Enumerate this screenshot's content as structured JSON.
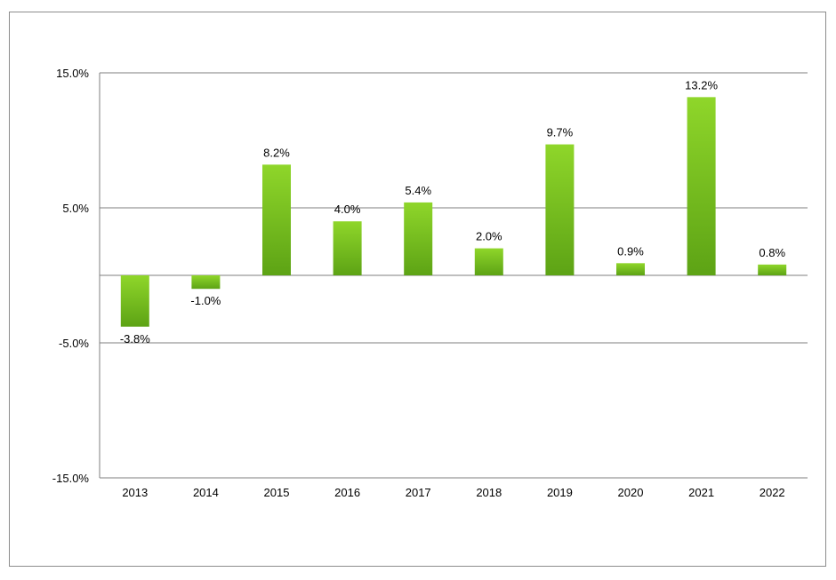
{
  "chart_data": {
    "type": "bar",
    "title": "",
    "xlabel": "",
    "ylabel": "",
    "categories": [
      "2013",
      "2014",
      "2015",
      "2016",
      "2017",
      "2018",
      "2019",
      "2020",
      "2021",
      "2022"
    ],
    "values": [
      -3.8,
      -1.0,
      8.2,
      4.0,
      5.4,
      2.0,
      9.7,
      0.9,
      13.2,
      0.8
    ],
    "data_labels": [
      "-3.8%",
      "-1.0%",
      "8.2%",
      "4.0%",
      "5.4%",
      "2.0%",
      "9.7%",
      "0.9%",
      "13.2%",
      "0.8%"
    ],
    "ylim": [
      -15,
      15
    ],
    "yticks": [
      15,
      5,
      -5,
      -15
    ],
    "ytick_labels": [
      "15.0%",
      "5.0%",
      "-5.0%",
      "-15.0%"
    ],
    "grid": true,
    "legend": "none",
    "colors": {
      "bar_light": "#8fd62a",
      "bar_dark": "#5da315",
      "gridline": "#7f7f7f",
      "text": "#000000"
    }
  }
}
